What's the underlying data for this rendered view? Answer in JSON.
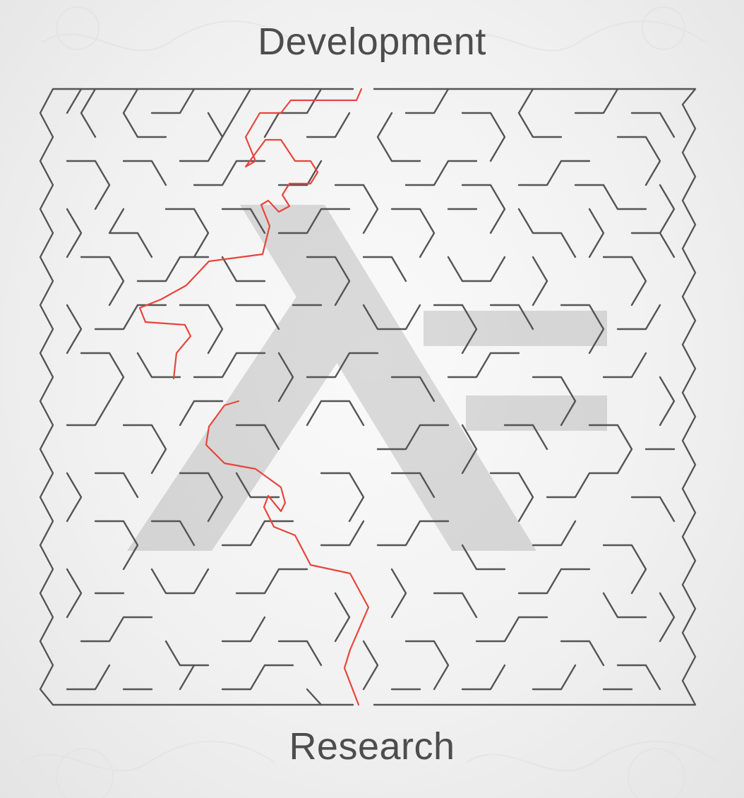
{
  "labels": {
    "top": "Development",
    "bottom": "Research"
  },
  "colors": {
    "background": "#f1f1f1",
    "wall": "#555555",
    "solution": "#e8453c",
    "watermark": "#9a9a9a"
  },
  "icons": {
    "watermark": "x-logo-icon"
  }
}
